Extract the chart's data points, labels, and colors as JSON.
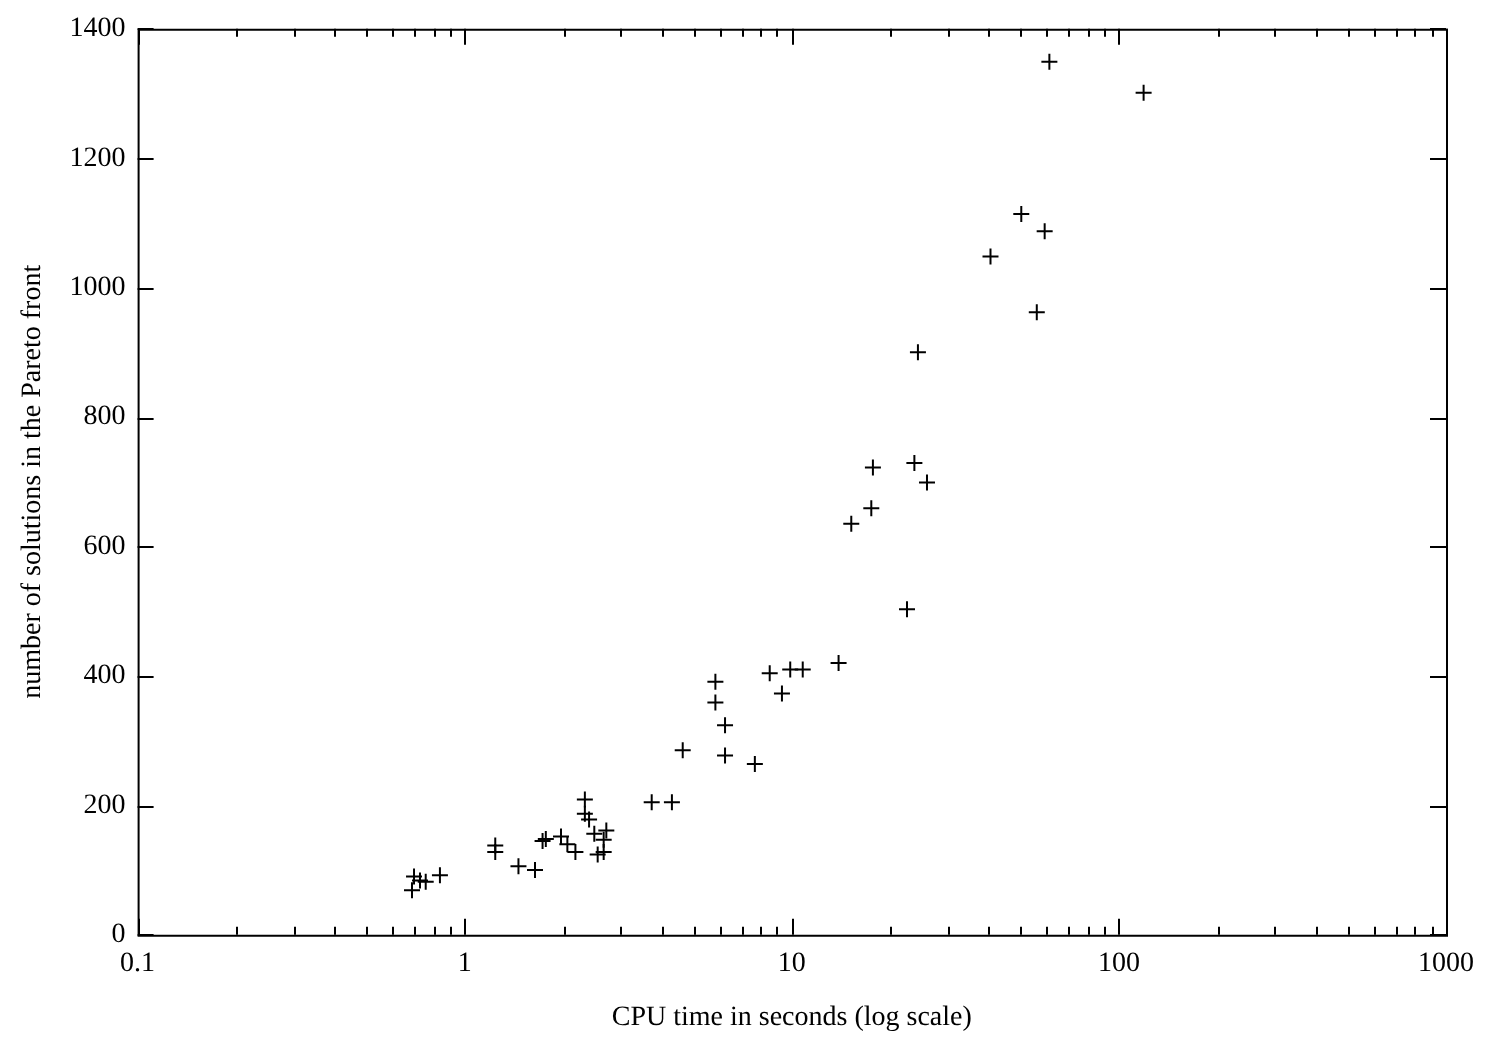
{
  "chart_data": {
    "type": "scatter",
    "xlabel": "CPU time in seconds (log scale)",
    "ylabel": "number of solutions in the Pareto front",
    "log": "x",
    "marker": "cross",
    "xlim": [
      0.1,
      1000
    ],
    "ylim": [
      0,
      1400
    ],
    "xticks": [
      0.1,
      {
        "value": 0.2,
        "label": null
      },
      {
        "value": 0.3,
        "label": null
      },
      {
        "value": 0.4,
        "label": null
      },
      {
        "value": 0.5,
        "label": null
      },
      {
        "value": 0.6,
        "label": null
      },
      {
        "value": 0.7,
        "label": null
      },
      {
        "value": 0.8,
        "label": null
      },
      {
        "value": 0.9,
        "label": null
      },
      1,
      {
        "value": 2,
        "label": null
      },
      {
        "value": 3,
        "label": null
      },
      {
        "value": 4,
        "label": null
      },
      {
        "value": 5,
        "label": null
      },
      {
        "value": 6,
        "label": null
      },
      {
        "value": 7,
        "label": null
      },
      {
        "value": 8,
        "label": null
      },
      {
        "value": 9,
        "label": null
      },
      10,
      {
        "value": 20,
        "label": null
      },
      {
        "value": 30,
        "label": null
      },
      {
        "value": 40,
        "label": null
      },
      {
        "value": 50,
        "label": null
      },
      {
        "value": 60,
        "label": null
      },
      {
        "value": 70,
        "label": null
      },
      {
        "value": 80,
        "label": null
      },
      {
        "value": 90,
        "label": null
      },
      100,
      {
        "value": 200,
        "label": null
      },
      {
        "value": 300,
        "label": null
      },
      {
        "value": 400,
        "label": null
      },
      {
        "value": 500,
        "label": null
      },
      {
        "value": 600,
        "label": null
      },
      {
        "value": 700,
        "label": null
      },
      {
        "value": 800,
        "label": null
      },
      {
        "value": 900,
        "label": null
      },
      1000
    ],
    "yticks": [
      0,
      200,
      400,
      600,
      800,
      1000,
      1200,
      1400
    ],
    "series": [
      {
        "color": "#000000",
        "x": [
          0.69,
          0.7,
          0.73,
          0.76,
          0.84,
          1.24,
          1.24,
          1.46,
          1.64,
          1.73,
          1.77,
          1.97,
          2.06,
          2.18,
          2.33,
          2.33,
          2.4,
          2.49,
          2.55,
          2.66,
          2.71,
          2.66,
          3.73,
          4.3,
          4.64,
          5.84,
          5.84,
          6.25,
          6.25,
          7.71,
          8.56,
          9.33,
          9.89,
          10.8,
          13.9,
          22.5,
          15.2,
          17.5,
          17.7,
          23.7,
          25.9,
          24.3,
          56.1,
          40.5,
          50.3,
          59.3,
          61.3,
          119
        ],
        "values": [
          69,
          90,
          84,
          82,
          92,
          138,
          128,
          106,
          100,
          145,
          148,
          152,
          140,
          128,
          209,
          187,
          178,
          156,
          124,
          128,
          161,
          147,
          205,
          205,
          285,
          391,
          359,
          324,
          277,
          264,
          404,
          373,
          410,
          410,
          420,
          503,
          635,
          659,
          722,
          729,
          699,
          900,
          962,
          1048,
          1114,
          1087,
          1349,
          1301
        ]
      }
    ]
  }
}
